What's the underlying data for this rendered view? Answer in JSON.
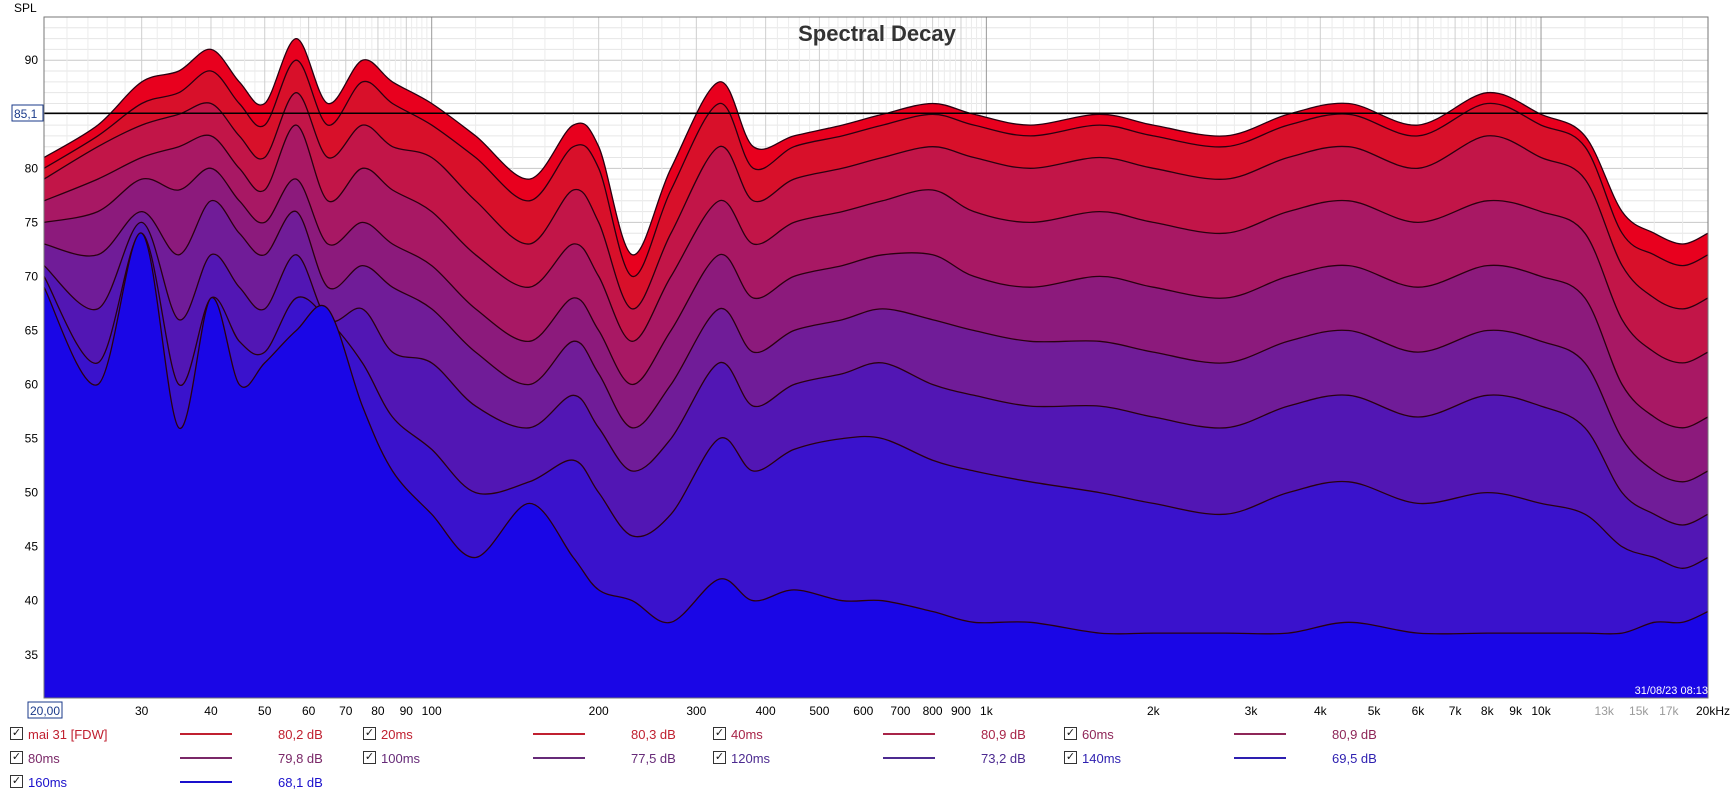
{
  "chart_data": {
    "type": "area",
    "title": "Spectral Decay",
    "ylabel": "SPL",
    "xscale": "log",
    "xlim": [
      20,
      20000
    ],
    "ylim": [
      31,
      94
    ],
    "cursor": {
      "value": 85.1,
      "label": "85,1",
      "x_label": "20,00"
    },
    "timestamp": "31/08/23 08:13",
    "yticks": [
      {
        "v": 35,
        "label": "35"
      },
      {
        "v": 40,
        "label": "40"
      },
      {
        "v": 45,
        "label": "45"
      },
      {
        "v": 50,
        "label": "50"
      },
      {
        "v": 55,
        "label": "55"
      },
      {
        "v": 60,
        "label": "60"
      },
      {
        "v": 65,
        "label": "65"
      },
      {
        "v": 70,
        "label": "70"
      },
      {
        "v": 75,
        "label": "75"
      },
      {
        "v": 80,
        "label": "80"
      },
      {
        "v": 90,
        "label": "90"
      }
    ],
    "xticks": [
      {
        "v": 30,
        "label": "30"
      },
      {
        "v": 40,
        "label": "40"
      },
      {
        "v": 50,
        "label": "50"
      },
      {
        "v": 60,
        "label": "60"
      },
      {
        "v": 70,
        "label": "70"
      },
      {
        "v": 80,
        "label": "80"
      },
      {
        "v": 90,
        "label": "90"
      },
      {
        "v": 100,
        "label": "100"
      },
      {
        "v": 200,
        "label": "200"
      },
      {
        "v": 300,
        "label": "300"
      },
      {
        "v": 400,
        "label": "400"
      },
      {
        "v": 500,
        "label": "500"
      },
      {
        "v": 600,
        "label": "600"
      },
      {
        "v": 700,
        "label": "700"
      },
      {
        "v": 800,
        "label": "800"
      },
      {
        "v": 900,
        "label": "900"
      },
      {
        "v": 1000,
        "label": "1k"
      },
      {
        "v": 2000,
        "label": "2k"
      },
      {
        "v": 3000,
        "label": "3k"
      },
      {
        "v": 4000,
        "label": "4k"
      },
      {
        "v": 5000,
        "label": "5k"
      },
      {
        "v": 6000,
        "label": "6k"
      },
      {
        "v": 7000,
        "label": "7k"
      },
      {
        "v": 8000,
        "label": "8k"
      },
      {
        "v": 9000,
        "label": "9k"
      },
      {
        "v": 10000,
        "label": "10k"
      },
      {
        "v": 13000,
        "label": "13k"
      },
      {
        "v": 15000,
        "label": "15k"
      },
      {
        "v": 17000,
        "label": "17k"
      },
      {
        "v": 20000,
        "label": "20kHz"
      }
    ],
    "x": [
      20,
      25,
      30,
      35,
      40,
      45,
      50,
      57,
      65,
      75,
      85,
      100,
      120,
      150,
      180,
      200,
      230,
      270,
      330,
      380,
      450,
      550,
      650,
      800,
      950,
      1200,
      1600,
      2000,
      2700,
      3500,
      4500,
      6000,
      8000,
      10000,
      12000,
      14000,
      16000,
      18000,
      20000
    ],
    "series": [
      {
        "name": "mai 31 [FDW]",
        "value": "80,2 dB",
        "color": "#c02030",
        "values": [
          81,
          84,
          88,
          89,
          91,
          88,
          86,
          92,
          86,
          90,
          88,
          86,
          83,
          79,
          84,
          82,
          72,
          80,
          88,
          82,
          83,
          84,
          85,
          86,
          85,
          84,
          85,
          84,
          83,
          85,
          86,
          84,
          87,
          85,
          83,
          76,
          74,
          73,
          74
        ]
      },
      {
        "name": "20ms",
        "value": "80,3 dB",
        "color": "#c02030",
        "values": [
          80,
          83,
          86,
          87,
          89,
          86,
          84,
          90,
          84,
          88,
          86,
          84,
          81,
          77,
          82,
          80,
          70,
          78,
          86,
          80,
          82,
          83,
          84,
          85,
          84,
          83,
          84,
          83,
          82,
          84,
          85,
          83,
          86,
          84,
          82,
          74,
          72,
          71,
          72
        ]
      },
      {
        "name": "40ms",
        "value": "80,9 dB",
        "color": "#a82448",
        "values": [
          79,
          82,
          84,
          85,
          86,
          83,
          81,
          87,
          81,
          84,
          82,
          81,
          77,
          73,
          78,
          75,
          67,
          74,
          82,
          77,
          79,
          80,
          81,
          82,
          81,
          80,
          81,
          80,
          79,
          81,
          82,
          80,
          83,
          81,
          79,
          71,
          68,
          67,
          68
        ]
      },
      {
        "name": "60ms",
        "value": "80,9 dB",
        "color": "#8e2658",
        "values": [
          77,
          79,
          81,
          82,
          83,
          80,
          78,
          84,
          77,
          80,
          78,
          76,
          72,
          69,
          73,
          70,
          64,
          70,
          77,
          73,
          75,
          76,
          77,
          78,
          76,
          75,
          76,
          75,
          74,
          76,
          77,
          75,
          77,
          76,
          74,
          66,
          63,
          62,
          63
        ]
      },
      {
        "name": "80ms",
        "value": "79,8 dB",
        "color": "#7a2868",
        "values": [
          75,
          76,
          79,
          78,
          80,
          77,
          75,
          79,
          73,
          75,
          73,
          71,
          67,
          64,
          68,
          65,
          60,
          65,
          72,
          68,
          70,
          71,
          72,
          72,
          70,
          69,
          70,
          69,
          68,
          70,
          71,
          69,
          71,
          70,
          68,
          60,
          57,
          56,
          57
        ]
      },
      {
        "name": "100ms",
        "value": "77,5 dB",
        "color": "#662a78",
        "values": [
          73,
          72,
          76,
          72,
          77,
          74,
          72,
          76,
          69,
          71,
          69,
          67,
          63,
          60,
          64,
          61,
          56,
          60,
          67,
          63,
          65,
          66,
          67,
          66,
          65,
          64,
          64,
          63,
          62,
          64,
          65,
          63,
          65,
          64,
          62,
          55,
          52,
          51,
          52
        ]
      },
      {
        "name": "120ms",
        "value": "73,2 dB",
        "color": "#4c2a90",
        "values": [
          71,
          67,
          75,
          66,
          72,
          69,
          67,
          72,
          66,
          67,
          63,
          62,
          58,
          56,
          59,
          56,
          52,
          55,
          62,
          58,
          60,
          61,
          62,
          60,
          59,
          58,
          58,
          57,
          56,
          58,
          59,
          57,
          59,
          58,
          56,
          50,
          48,
          47,
          48
        ]
      },
      {
        "name": "140ms",
        "value": "69,5 dB",
        "color": "#2d1fb0",
        "values": [
          70,
          62,
          74,
          60,
          68,
          64,
          63,
          68,
          66,
          62,
          57,
          54,
          50,
          51,
          53,
          50,
          46,
          48,
          55,
          52,
          54,
          55,
          55,
          53,
          52,
          51,
          50,
          49,
          48,
          50,
          51,
          49,
          50,
          49,
          48,
          45,
          44,
          43,
          44
        ]
      },
      {
        "name": "160ms",
        "value": "68,1 dB",
        "color": "#1a10cc",
        "values": [
          69,
          60,
          74,
          56,
          68,
          60,
          62,
          65,
          67,
          58,
          52,
          48,
          44,
          49,
          44,
          41,
          40,
          38,
          42,
          40,
          41,
          40,
          40,
          39,
          38,
          38,
          37,
          37,
          37,
          37,
          38,
          37,
          37,
          37,
          37,
          37,
          38,
          38,
          39
        ]
      }
    ]
  }
}
